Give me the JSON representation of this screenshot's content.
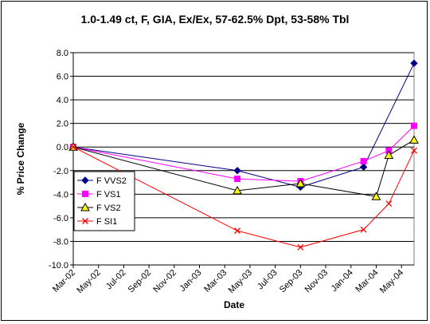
{
  "chart_data": {
    "type": "line",
    "title": "1.0-1.49 ct, F, GIA, Ex/Ex, 57-62.5% Dpt, 53-58% Tbl",
    "xlabel": "Date",
    "ylabel": "% Price Change",
    "x_ticks": [
      "Mar-02",
      "May-02",
      "Jul-02",
      "Sep-02",
      "Nov-02",
      "Jan-03",
      "Mar-03",
      "May-03",
      "Jul-03",
      "Sep-03",
      "Nov-03",
      "Jan-04",
      "Mar-04",
      "May-04"
    ],
    "x_range": [
      "2002-03",
      "2004-06"
    ],
    "ylim": [
      -10,
      8
    ],
    "y_ticks": [
      "8.0",
      "6.0",
      "4.0",
      "2.0",
      "0.0",
      "-2.0",
      "-4.0",
      "-6.0",
      "-8.0",
      "-10.0"
    ],
    "y_step": 2,
    "grid": "horizontal",
    "legend_position": "lower-left",
    "series": [
      {
        "name": "F VVS2",
        "color": "#000080",
        "marker": "diamond",
        "x": [
          "2002-03",
          "2003-04",
          "2003-09",
          "2004-02",
          "2004-06"
        ],
        "y": [
          0.0,
          -2.0,
          -3.4,
          -1.7,
          7.1
        ]
      },
      {
        "name": "F VS1",
        "color": "#ff00ff",
        "marker": "square",
        "x": [
          "2002-03",
          "2003-04",
          "2003-09",
          "2004-02",
          "2004-04",
          "2004-06"
        ],
        "y": [
          0.0,
          -2.7,
          -2.9,
          -1.2,
          -0.3,
          1.8
        ]
      },
      {
        "name": "F VS2",
        "color": "#000000",
        "fill": "#ffff00",
        "marker": "triangle",
        "x": [
          "2002-03",
          "2003-04",
          "2003-09",
          "2004-03",
          "2004-04",
          "2004-06"
        ],
        "y": [
          0.0,
          -3.7,
          -3.1,
          -4.2,
          -0.7,
          0.6
        ]
      },
      {
        "name": "F SI1",
        "color": "#ff0000",
        "marker": "x",
        "x": [
          "2002-03",
          "2003-04",
          "2003-09",
          "2004-02",
          "2004-04",
          "2004-06"
        ],
        "y": [
          0.0,
          -7.1,
          -8.5,
          -7.0,
          -4.8,
          -0.3
        ]
      }
    ]
  }
}
